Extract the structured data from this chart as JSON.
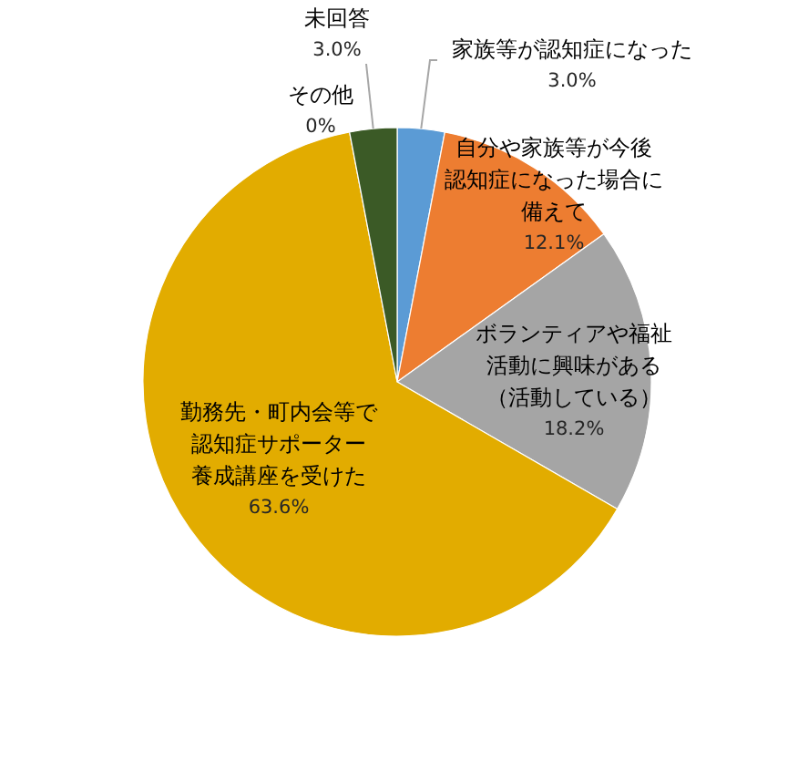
{
  "chart_data": {
    "type": "pie",
    "categories": [
      "家族等が認知症になった",
      "自分や家族等が今後認知症になった場合に備えて",
      "ボランティアや福祉活動に興味がある（活動している）",
      "勤務先・町内会等で認知症サポーター養成講座を受けた",
      "その他",
      "未回答"
    ],
    "values": [
      3.0,
      12.1,
      18.2,
      63.6,
      0,
      3.0
    ],
    "colors": [
      "#5b9bd5",
      "#ed7d31",
      "#a5a5a5",
      "#e2ac00",
      null,
      "#3b5a26"
    ],
    "value_labels": [
      "3.0%",
      "12.1%",
      "18.2%",
      "63.6%",
      "0%",
      "3.0%"
    ]
  }
}
